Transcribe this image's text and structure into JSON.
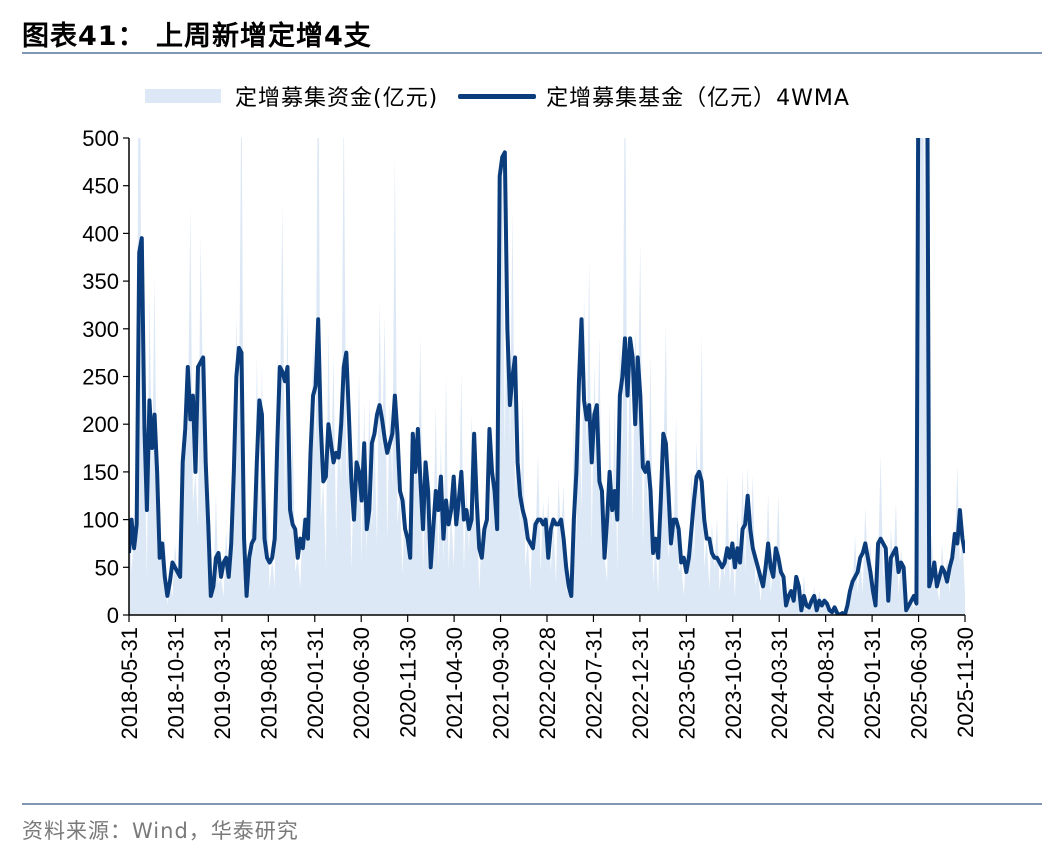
{
  "header": {
    "title": "图表41：  上周新增定增4支"
  },
  "footer": {
    "source": "资料来源：Wind，华泰研究"
  },
  "chart_data": {
    "type": "area",
    "colors": {
      "area": "#dce8f5",
      "line": "#0b3d7c",
      "axis": "#000000",
      "rule": "#7f98b3"
    },
    "series": [
      {
        "name": "定增募集资金(亿元)",
        "type": "area"
      },
      {
        "name": "定增募集基金（亿元）4WMA",
        "type": "line"
      }
    ],
    "ylim": [
      0,
      500
    ],
    "yticks": [
      0,
      50,
      100,
      150,
      200,
      250,
      300,
      350,
      400,
      450,
      500
    ],
    "xticks": [
      "2018-05-31",
      "2018-10-31",
      "2019-03-31",
      "2019-08-31",
      "2020-01-31",
      "2020-06-30",
      "2020-11-30",
      "2021-04-30",
      "2021-09-30",
      "2022-02-28",
      "2022-07-31",
      "2022-12-31",
      "2023-05-31",
      "2023-10-31",
      "2024-03-31",
      "2024-08-31",
      "2025-01-31",
      "2025-06-30",
      "2025-11-30"
    ],
    "line_values": [
      65,
      100,
      70,
      95,
      380,
      395,
      200,
      110,
      225,
      175,
      210,
      150,
      60,
      75,
      40,
      20,
      35,
      55,
      50,
      45,
      40,
      160,
      195,
      260,
      205,
      230,
      150,
      260,
      265,
      270,
      160,
      95,
      20,
      30,
      60,
      65,
      40,
      55,
      60,
      40,
      75,
      150,
      250,
      280,
      275,
      80,
      20,
      60,
      75,
      80,
      160,
      225,
      210,
      80,
      60,
      55,
      60,
      80,
      180,
      260,
      255,
      245,
      260,
      110,
      95,
      90,
      60,
      80,
      70,
      100,
      80,
      170,
      230,
      240,
      310,
      200,
      140,
      145,
      200,
      180,
      160,
      170,
      165,
      200,
      260,
      275,
      210,
      140,
      100,
      160,
      150,
      120,
      180,
      90,
      110,
      180,
      190,
      210,
      220,
      205,
      185,
      170,
      180,
      190,
      230,
      190,
      130,
      120,
      90,
      80,
      60,
      190,
      150,
      195,
      140,
      90,
      160,
      130,
      50,
      90,
      130,
      110,
      145,
      80,
      120,
      95,
      110,
      145,
      95,
      120,
      150,
      100,
      110,
      90,
      100,
      190,
      120,
      70,
      60,
      90,
      100,
      195,
      150,
      130,
      90,
      460,
      480,
      485,
      300,
      220,
      250,
      270,
      160,
      125,
      110,
      100,
      80,
      75,
      70,
      95,
      100,
      100,
      95,
      100,
      60,
      90,
      100,
      95,
      95,
      100,
      80,
      50,
      30,
      20,
      100,
      150,
      245,
      310,
      225,
      205,
      220,
      160,
      210,
      220,
      140,
      130,
      60,
      100,
      150,
      110,
      130,
      100,
      230,
      250,
      290,
      230,
      290,
      270,
      200,
      270,
      230,
      155,
      150,
      160,
      130,
      65,
      80,
      60,
      120,
      190,
      180,
      130,
      75,
      100,
      100,
      90,
      55,
      60,
      45,
      60,
      90,
      120,
      145,
      150,
      140,
      100,
      80,
      80,
      65,
      60,
      60,
      55,
      50,
      55,
      70,
      60,
      75,
      50,
      70,
      55,
      90,
      95,
      125,
      90,
      70,
      60,
      50,
      40,
      30,
      50,
      75,
      50,
      40,
      70,
      60,
      45,
      40,
      10,
      20,
      25,
      15,
      40,
      30,
      5,
      20,
      10,
      8,
      15,
      20,
      5,
      15,
      10,
      15,
      12,
      5,
      3,
      8,
      2,
      0,
      2,
      0,
      10,
      25,
      35,
      40,
      45,
      60,
      65,
      75,
      60,
      45,
      25,
      10,
      75,
      80,
      75,
      70,
      15,
      60,
      65,
      70,
      45,
      55,
      50,
      5,
      10,
      15,
      20,
      12,
      750,
      800,
      780,
      750,
      30,
      40,
      55,
      30,
      40,
      50,
      45,
      35,
      50,
      60,
      85,
      75,
      110,
      80,
      65
    ]
  }
}
